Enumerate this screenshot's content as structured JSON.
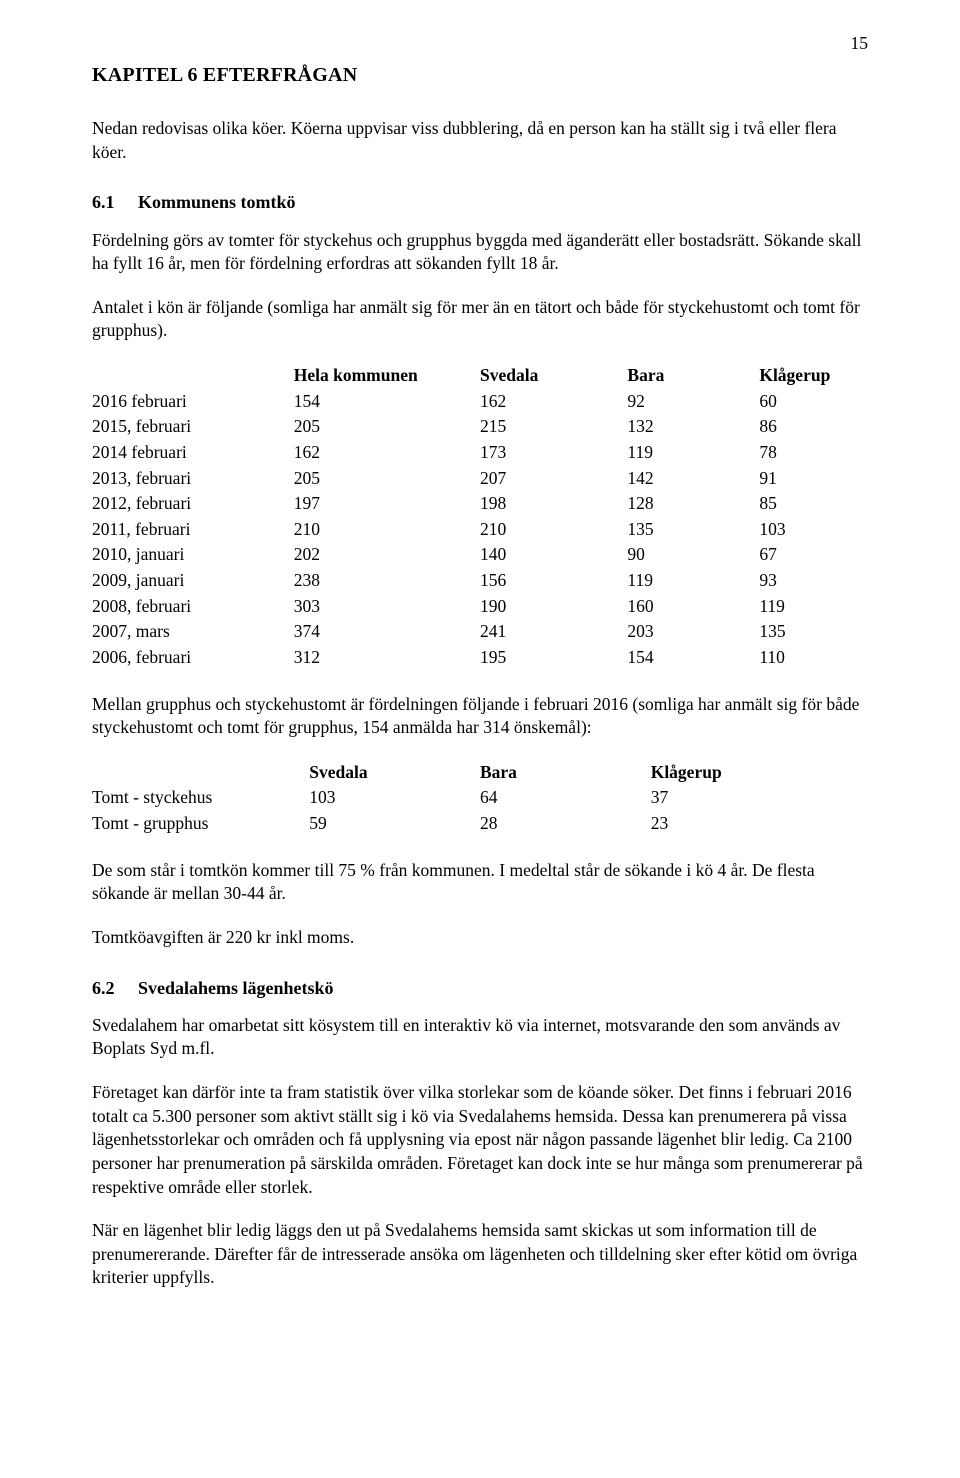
{
  "page_number": "15",
  "h1": "KAPITEL 6  EFTERFRÅGAN",
  "intro": "Nedan redovisas olika köer. Köerna uppvisar viss dubblering, då en person kan ha ställt sig i två eller flera köer.",
  "sec61_num": "6.1",
  "sec61_title": "Kommunens tomtkö",
  "p61a": "Fördelning görs av tomter för styckehus och grupphus byggda med äganderätt eller bostadsrätt. Sökande skall ha fyllt 16 år, men för fördelning erfordras att sökanden fyllt 18 år.",
  "p61b": "Antalet i kön är följande (somliga har anmält sig för mer än en tätort och både för styckehustomt och tomt för grupphus).",
  "table1": {
    "columns": [
      "",
      "Hela kommunen",
      "Svedala",
      "Bara",
      "Klågerup"
    ],
    "rows": [
      [
        "2016 februari",
        "154",
        "162",
        "92",
        "60"
      ],
      [
        "2015, februari",
        "205",
        "215",
        "132",
        "86"
      ],
      [
        "2014 februari",
        "162",
        "173",
        "119",
        "78"
      ],
      [
        "2013, februari",
        "205",
        "207",
        "142",
        "91"
      ],
      [
        "2012, februari",
        "197",
        "198",
        "128",
        "85"
      ],
      [
        "2011, februari",
        "210",
        "210",
        "135",
        "103"
      ],
      [
        "2010, januari",
        "202",
        "140",
        "90",
        "67"
      ],
      [
        "2009, januari",
        "238",
        "156",
        "119",
        "93"
      ],
      [
        "2008, februari",
        "303",
        "190",
        "160",
        "119"
      ],
      [
        "2007, mars",
        "374",
        "241",
        "203",
        "135"
      ],
      [
        "2006, februari",
        "312",
        "195",
        "154",
        "110"
      ]
    ]
  },
  "p_between": "Mellan grupphus och styckehustomt är fördelningen följande i februari 2016 (somliga har anmält sig för både styckehustomt och tomt för grupphus, 154 anmälda har 314 önskemål):",
  "table2": {
    "columns": [
      "",
      "Svedala",
      "Bara",
      "Klågerup"
    ],
    "rows": [
      [
        "Tomt - styckehus",
        "103",
        "64",
        "37"
      ],
      [
        "Tomt - grupphus",
        "59",
        "28",
        "23"
      ]
    ]
  },
  "p_after_t2a": "De som står i tomtkön kommer till 75 % från kommunen. I medeltal står de sökande i kö 4 år. De flesta sökande är mellan 30-44 år.",
  "p_after_t2b": "Tomtköavgiften är 220 kr inkl moms.",
  "sec62_num": "6.2",
  "sec62_title": "Svedalahems lägenhetskö",
  "p62a": "Svedalahem har omarbetat sitt kösystem till en interaktiv kö via internet, motsvarande den som används av Boplats Syd m.fl.",
  "p62b": "Företaget kan därför inte ta fram statistik över vilka storlekar som de köande söker. Det finns i februari 2016 totalt ca 5.300 personer som aktivt ställt sig i kö via Svedalahems hemsida. Dessa kan prenumerera på vissa lägenhetsstorlekar och områden och få upplysning via epost när någon passande lägenhet blir ledig. Ca 2100 personer har prenumeration på särskilda områden. Företaget kan dock inte se hur många som prenumererar på respektive område eller storlek.",
  "p62c": "När en lägenhet blir ledig läggs den ut på Svedalahems hemsida samt skickas ut som information till de prenumererande. Därefter får de intresserade ansöka om lägenheten och tilldelning sker efter kötid om övriga kriterier uppfylls."
}
